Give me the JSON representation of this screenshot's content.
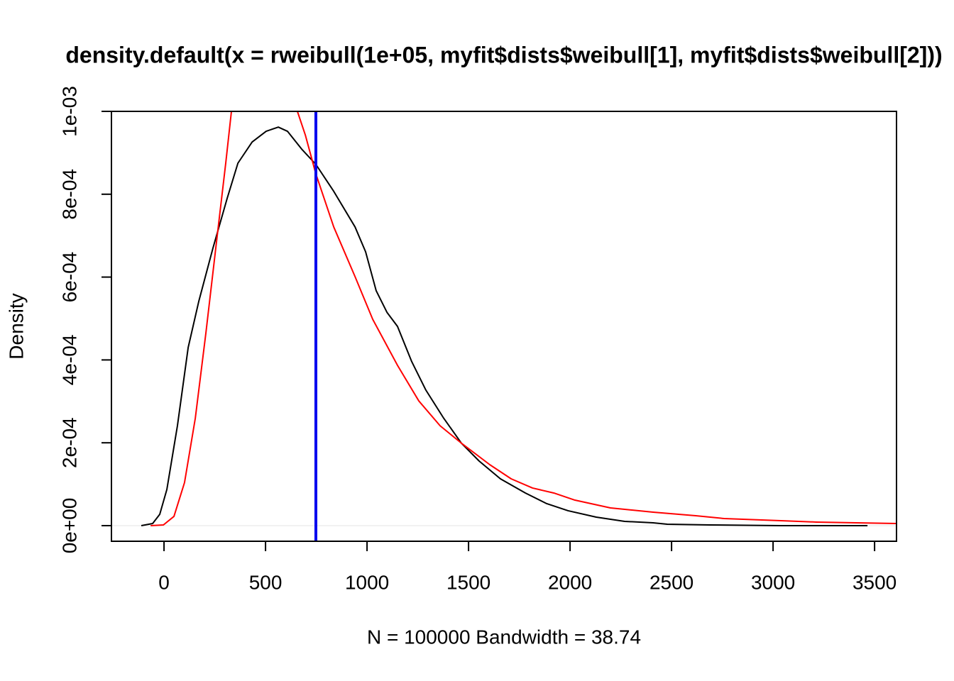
{
  "chart_data": {
    "type": "line",
    "title": "density.default(x = rweibull(1e+05, myfit$dists$weibull[1], myfit$dists$weibull[2]))",
    "x_label": "N = 100000   Bandwidth = 38.74",
    "y_label": "Density",
    "xlim": [
      -259,
      3608
    ],
    "ylim": [
      -3.77e-05,
      0.001
    ],
    "xticks": [
      0,
      500,
      1000,
      1500,
      2000,
      2500,
      3000,
      3500
    ],
    "yticks": [
      {
        "value": 0,
        "label": "0e+00"
      },
      {
        "value": 0.0002,
        "label": "2e-04"
      },
      {
        "value": 0.0004,
        "label": "4e-04"
      },
      {
        "value": 0.0006,
        "label": "6e-04"
      },
      {
        "value": 0.0008,
        "label": "8e-04"
      },
      {
        "value": 0.001,
        "label": "1e-03"
      }
    ],
    "vline_x": 748,
    "vline_color": "#0000ee",
    "series": [
      {
        "color": "#000000",
        "x": [
          -112,
          -56,
          -21,
          14,
          66,
          119,
          171,
          241,
          311,
          364,
          434,
          503,
          563,
          608,
          678,
          748,
          836,
          941,
          993,
          1045,
          1098,
          1150,
          1220,
          1290,
          1378,
          1465,
          1552,
          1657,
          1780,
          1885,
          1990,
          2129,
          2269,
          2409,
          2479,
          2689,
          3038,
          3465
        ],
        "values": [
          0,
          5.1e-06,
          2.74e-05,
          8.73e-05,
          0.000241,
          0.00043,
          0.000541,
          0.00067,
          0.00079,
          0.000875,
          0.000926,
          0.000952,
          0.000962,
          0.000952,
          0.000909,
          0.000872,
          0.000807,
          0.000721,
          0.000661,
          0.000567,
          0.000515,
          0.000481,
          0.000396,
          0.000327,
          0.000259,
          0.000199,
          0.000156,
          0.000113,
          7.88e-05,
          5.31e-05,
          3.6e-05,
          2.05e-05,
          1.03e-05,
          6.8e-06,
          3.4e-06,
          1.7e-06,
          0,
          0
        ]
      },
      {
        "color": "#ff0000",
        "x": [
          -66,
          -3,
          49,
          101,
          154,
          206,
          259,
          304,
          332,
          400,
          500,
          600,
          657,
          696,
          748,
          836,
          941,
          1028,
          1150,
          1255,
          1360,
          1465,
          1605,
          1710,
          1815,
          1920,
          2024,
          2199,
          2409,
          2619,
          2759,
          3038,
          3213,
          3608
        ],
        "values": [
          0,
          1.7e-06,
          2.23e-05,
          0.000104,
          0.000259,
          0.000464,
          0.000687,
          0.000875,
          0.001,
          0.00112,
          0.00113,
          0.00107,
          0.001,
          0.000943,
          0.000849,
          0.000721,
          0.000601,
          0.000498,
          0.000387,
          0.000301,
          0.000241,
          0.000199,
          0.000147,
          0.000113,
          9.08e-05,
          7.88e-05,
          6.16e-05,
          4.28e-05,
          3.25e-05,
          2.4e-05,
          1.71e-05,
          1.2e-05,
          8.6e-06,
          5.1e-06
        ]
      }
    ]
  }
}
